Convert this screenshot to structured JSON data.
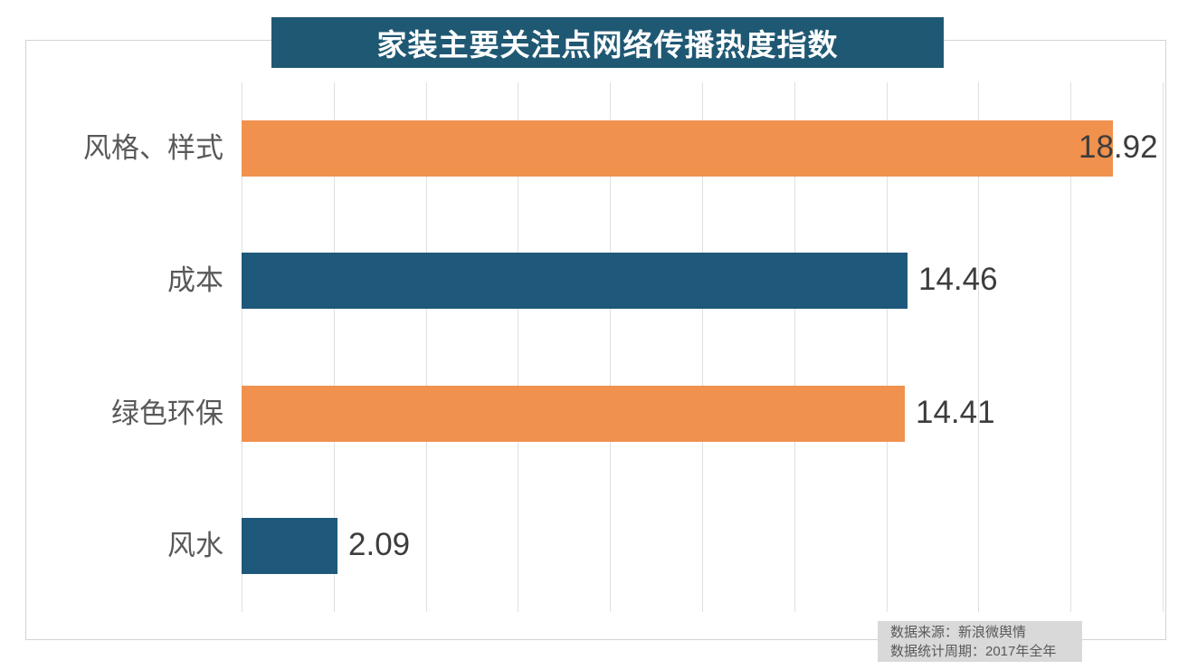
{
  "title": {
    "text": "家装主要关注点网络传播热度指数"
  },
  "source_note": {
    "line1": "数据来源：新浪微舆情",
    "line2": "数据统计周期：2017年全年"
  },
  "colors": {
    "background": "#ffffff",
    "banner_bg": "#1f5873",
    "title_text": "#ffffff",
    "bar_orange": "#f0914d",
    "bar_teal": "#1e587a",
    "gridline": "#e0e0e0",
    "outer_border": "#d3d3d3",
    "category_text": "#595959",
    "value_text": "#3d3d3d",
    "source_bg": "#d9d9d9",
    "source_text": "#595959"
  },
  "chart_data": {
    "type": "bar",
    "orientation": "horizontal",
    "title": "家装主要关注点网络传播热度指数",
    "categories": [
      "风格、样式",
      "成本",
      "绿色环保",
      "风水"
    ],
    "values": [
      18.92,
      14.46,
      14.41,
      2.09
    ],
    "value_labels": [
      "18.92",
      "14.46",
      "14.41",
      "2.09"
    ],
    "bar_color_names": [
      "orange",
      "teal",
      "orange",
      "teal"
    ],
    "xlabel": "",
    "ylabel": "",
    "xlim": [
      0,
      20
    ],
    "gridline_step": 2,
    "grid": "vertical-only",
    "axis_tick_labels": "none",
    "legend": "none",
    "value_label_position": "outside-end"
  }
}
